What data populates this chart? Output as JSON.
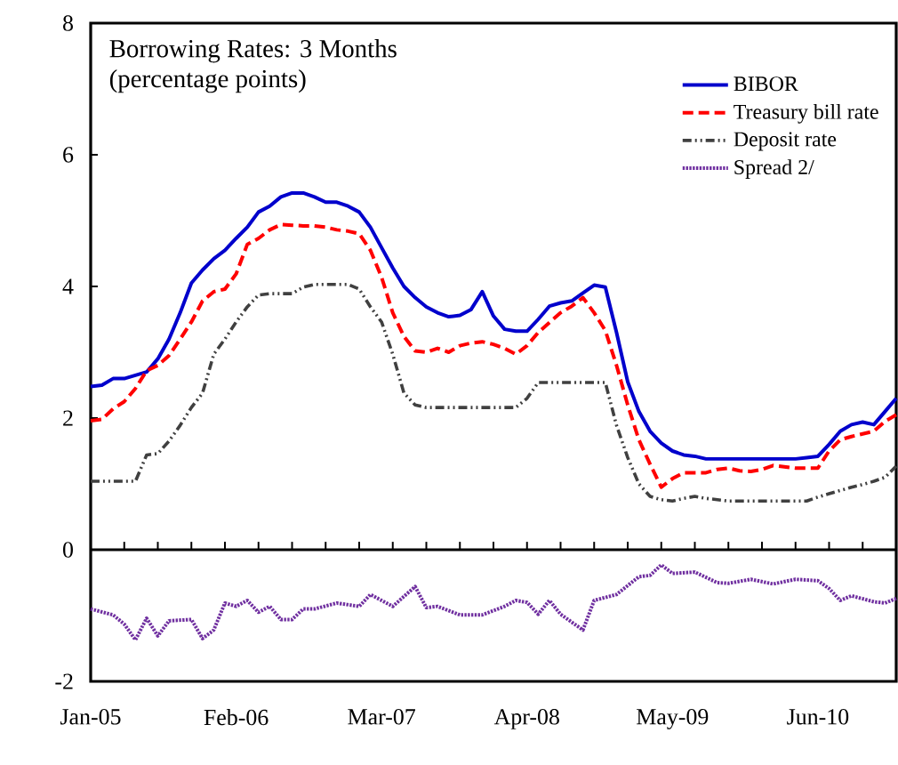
{
  "chart_data": {
    "type": "line",
    "title": "Borrowing Rates: 3 Months",
    "subtitle": "(percentage points)",
    "x": [
      "2005-01",
      "2005-02",
      "2005-03",
      "2005-04",
      "2005-05",
      "2005-06",
      "2005-07",
      "2005-08",
      "2005-09",
      "2005-10",
      "2005-11",
      "2005-12",
      "2006-01",
      "2006-02",
      "2006-03",
      "2006-04",
      "2006-05",
      "2006-06",
      "2006-07",
      "2006-08",
      "2006-09",
      "2006-10",
      "2006-11",
      "2006-12",
      "2007-01",
      "2007-02",
      "2007-03",
      "2007-04",
      "2007-05",
      "2007-06",
      "2007-07",
      "2007-08",
      "2007-09",
      "2007-10",
      "2007-11",
      "2007-12",
      "2008-01",
      "2008-02",
      "2008-03",
      "2008-04",
      "2008-05",
      "2008-06",
      "2008-07",
      "2008-08",
      "2008-09",
      "2008-10",
      "2008-11",
      "2008-12",
      "2009-01",
      "2009-02",
      "2009-03",
      "2009-04",
      "2009-05",
      "2009-06",
      "2009-07",
      "2009-08",
      "2009-09",
      "2009-10",
      "2009-11",
      "2009-12",
      "2010-01",
      "2010-02",
      "2010-03",
      "2010-04",
      "2010-05",
      "2010-06",
      "2010-07",
      "2010-08",
      "2010-09",
      "2010-10",
      "2010-11",
      "2010-12",
      "2011-01"
    ],
    "series": [
      {
        "name": "BIBOR",
        "color": "#0000cc",
        "line_style": "solid",
        "values": [
          2.48,
          2.5,
          2.6,
          2.6,
          2.65,
          2.7,
          2.9,
          3.2,
          3.6,
          4.05,
          4.25,
          4.42,
          4.55,
          4.73,
          4.9,
          5.13,
          5.22,
          5.36,
          5.42,
          5.42,
          5.36,
          5.28,
          5.28,
          5.22,
          5.13,
          4.9,
          4.59,
          4.28,
          4.0,
          3.83,
          3.69,
          3.6,
          3.54,
          3.56,
          3.65,
          3.92,
          3.55,
          3.35,
          3.32,
          3.32,
          3.5,
          3.7,
          3.75,
          3.78,
          3.9,
          4.02,
          3.99,
          3.3,
          2.55,
          2.1,
          1.8,
          1.62,
          1.5,
          1.44,
          1.42,
          1.38,
          1.38,
          1.38,
          1.38,
          1.38,
          1.38,
          1.38,
          1.38,
          1.38,
          1.4,
          1.42,
          1.6,
          1.8,
          1.9,
          1.94,
          1.9,
          2.1,
          2.3
        ]
      },
      {
        "name": "Treasury bill rate",
        "color": "#ff0000",
        "line_style": "dashed",
        "values": [
          1.96,
          1.98,
          2.14,
          2.25,
          2.45,
          2.72,
          2.8,
          2.95,
          3.2,
          3.46,
          3.78,
          3.92,
          3.96,
          4.19,
          4.64,
          4.73,
          4.86,
          4.94,
          4.93,
          4.92,
          4.92,
          4.9,
          4.86,
          4.84,
          4.8,
          4.55,
          4.14,
          3.6,
          3.24,
          3.02,
          3.0,
          3.06,
          3.0,
          3.1,
          3.14,
          3.16,
          3.12,
          3.06,
          2.97,
          3.1,
          3.3,
          3.45,
          3.6,
          3.7,
          3.83,
          3.6,
          3.33,
          2.8,
          2.2,
          1.67,
          1.3,
          0.95,
          1.08,
          1.17,
          1.17,
          1.17,
          1.22,
          1.24,
          1.2,
          1.19,
          1.22,
          1.28,
          1.26,
          1.24,
          1.24,
          1.24,
          1.5,
          1.67,
          1.72,
          1.76,
          1.8,
          1.95,
          2.05
        ]
      },
      {
        "name": "Deposit rate",
        "color": "#404040",
        "line_style": "dashdotdot",
        "values": [
          1.04,
          1.04,
          1.04,
          1.04,
          1.04,
          1.44,
          1.46,
          1.65,
          1.89,
          2.16,
          2.38,
          2.97,
          3.2,
          3.46,
          3.69,
          3.87,
          3.89,
          3.89,
          3.89,
          3.99,
          4.03,
          4.03,
          4.03,
          4.03,
          3.96,
          3.69,
          3.46,
          2.97,
          2.38,
          2.2,
          2.16,
          2.16,
          2.16,
          2.16,
          2.16,
          2.16,
          2.16,
          2.16,
          2.16,
          2.3,
          2.54,
          2.54,
          2.54,
          2.54,
          2.54,
          2.54,
          2.54,
          1.89,
          1.4,
          1.0,
          0.81,
          0.76,
          0.74,
          0.78,
          0.81,
          0.78,
          0.76,
          0.74,
          0.74,
          0.74,
          0.74,
          0.74,
          0.74,
          0.74,
          0.74,
          0.8,
          0.85,
          0.9,
          0.95,
          0.99,
          1.04,
          1.1,
          1.27
        ]
      },
      {
        "name": "Spread 2/",
        "color": "#7030a0",
        "line_style": "dotted",
        "x": [
          "2005-01",
          "2005-03",
          "2005-04",
          "2005-05",
          "2005-06",
          "2005-07",
          "2005-08",
          "2005-10",
          "2005-11",
          "2005-12",
          "2006-01",
          "2006-02",
          "2006-03",
          "2006-04",
          "2006-05",
          "2006-06",
          "2006-07",
          "2006-08",
          "2006-09",
          "2006-11",
          "2007-01",
          "2007-02",
          "2007-04",
          "2007-06",
          "2007-07",
          "2007-08",
          "2007-10",
          "2007-12",
          "2008-02",
          "2008-03",
          "2008-04",
          "2008-05",
          "2008-06",
          "2008-07",
          "2008-09",
          "2008-10",
          "2008-12",
          "2009-02",
          "2009-03",
          "2009-04",
          "2009-05",
          "2009-07",
          "2009-09",
          "2009-10",
          "2009-12",
          "2010-02",
          "2010-04",
          "2010-06",
          "2010-07",
          "2010-08",
          "2010-09",
          "2010-11",
          "2010-12",
          "2011-01"
        ],
        "values": [
          -0.9,
          -0.99,
          -1.13,
          -1.37,
          -1.04,
          -1.31,
          -1.08,
          -1.06,
          -1.35,
          -1.22,
          -0.81,
          -0.86,
          -0.77,
          -0.95,
          -0.86,
          -1.06,
          -1.06,
          -0.9,
          -0.9,
          -0.81,
          -0.86,
          -0.68,
          -0.86,
          -0.56,
          -0.88,
          -0.86,
          -0.99,
          -0.99,
          -0.86,
          -0.77,
          -0.8,
          -0.98,
          -0.77,
          -0.98,
          -1.22,
          -0.77,
          -0.68,
          -0.41,
          -0.39,
          -0.23,
          -0.36,
          -0.34,
          -0.5,
          -0.51,
          -0.45,
          -0.52,
          -0.45,
          -0.47,
          -0.59,
          -0.77,
          -0.7,
          -0.79,
          -0.81,
          -0.74
        ]
      }
    ],
    "xlim": [
      "2005-01",
      "2011-01"
    ],
    "xticks": [
      {
        "value": "2005-01",
        "label": "Jan-05"
      },
      {
        "value": "2006-02",
        "label": "Feb-06"
      },
      {
        "value": "2007-03",
        "label": "Mar-07"
      },
      {
        "value": "2008-04",
        "label": "Apr-08"
      },
      {
        "value": "2009-05",
        "label": "May-09"
      },
      {
        "value": "2010-06",
        "label": "Jun-10"
      },
      {
        "value": "2005-04",
        "label": null
      },
      {
        "value": "2005-07",
        "label": null
      },
      {
        "value": "2005-10",
        "label": null
      },
      {
        "value": "2006-01",
        "label": null
      },
      {
        "value": "2006-04",
        "label": null
      },
      {
        "value": "2006-07",
        "label": null
      },
      {
        "value": "2006-10",
        "label": null
      },
      {
        "value": "2007-01",
        "label": null
      },
      {
        "value": "2007-04",
        "label": null
      },
      {
        "value": "2007-07",
        "label": null
      },
      {
        "value": "2007-10",
        "label": null
      },
      {
        "value": "2008-01",
        "label": null
      },
      {
        "value": "2008-04",
        "label": null
      },
      {
        "value": "2008-07",
        "label": null
      },
      {
        "value": "2008-10",
        "label": null
      },
      {
        "value": "2009-01",
        "label": null
      },
      {
        "value": "2009-04",
        "label": null
      },
      {
        "value": "2009-07",
        "label": null
      },
      {
        "value": "2009-10",
        "label": null
      },
      {
        "value": "2010-01",
        "label": null
      },
      {
        "value": "2010-04",
        "label": null
      },
      {
        "value": "2010-07",
        "label": null
      },
      {
        "value": "2010-10",
        "label": null
      }
    ],
    "ylim": [
      -2,
      8
    ],
    "yticks": [
      -2,
      0,
      2,
      4,
      6,
      8
    ],
    "ref_lines": [
      {
        "axis": "y",
        "value": 0,
        "color": "#000000"
      }
    ],
    "grid": false,
    "legend": "top right",
    "marker": "none"
  }
}
